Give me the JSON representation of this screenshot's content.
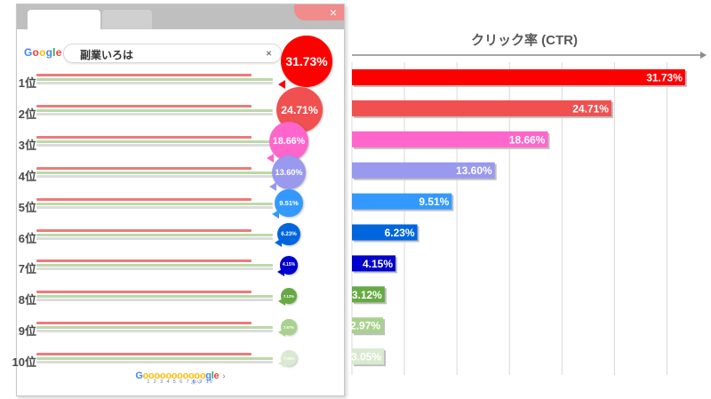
{
  "browser": {
    "close_symbol": "×",
    "search": {
      "engine_logo": "Google",
      "query": "副業いろは",
      "clear_symbol": "×"
    },
    "pagination": {
      "logo": "Gooooooooooogle",
      "next": "›",
      "pages": "1 2 3 4 5 6 7 8 9 10",
      "next_label": "次へ"
    }
  },
  "colors": {
    "google_blue": "#4285F4",
    "google_red": "#EA4335",
    "google_yellow": "#FBBC05",
    "google_green": "#34A853"
  },
  "chart_data": {
    "type": "bar",
    "orientation": "horizontal",
    "title": "クリック率 (CTR)",
    "categories": [
      "1位",
      "2位",
      "3位",
      "4位",
      "5位",
      "6位",
      "7位",
      "8位",
      "9位",
      "10位"
    ],
    "values": [
      31.73,
      24.71,
      18.66,
      13.6,
      9.51,
      6.23,
      4.15,
      3.12,
      2.97,
      3.05
    ],
    "labels": [
      "31.73%",
      "24.71%",
      "18.66%",
      "13.60%",
      "9.51%",
      "6.23%",
      "4.15%",
      "3.12%",
      "2.97%",
      "3.05%"
    ],
    "colors": [
      "#ff0000",
      "#f05050",
      "#ff66cc",
      "#9999ee",
      "#3399ff",
      "#0066dd",
      "#0000cc",
      "#66aa44",
      "#a9d18e",
      "#d9ead0"
    ],
    "xlim": [
      0,
      32.5
    ],
    "grid": true,
    "legend": "none"
  }
}
